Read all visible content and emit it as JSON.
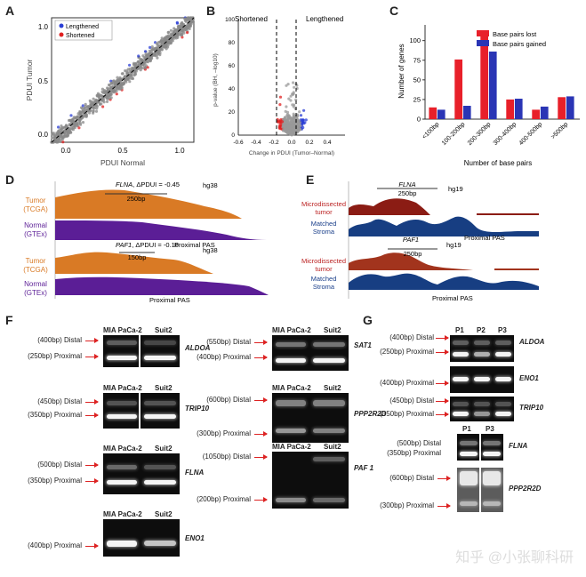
{
  "panels": {
    "a": "A",
    "b": "B",
    "c": "C",
    "d": "D",
    "e": "E",
    "f": "F",
    "g": "G"
  },
  "chart_data": [
    {
      "id": "A",
      "type": "scatter",
      "xlabel": "PDUI Normal",
      "ylabel": "PDUI Tumor",
      "xlim": [
        0,
        1
      ],
      "ylim": [
        0,
        1
      ],
      "xticks": [
        "0.0",
        "0.5",
        "1.0"
      ],
      "yticks": [
        "0.0",
        "0.5",
        "1.0"
      ],
      "legend": [
        "Lengthened",
        "Shortened"
      ],
      "colors": {
        "Lengthened": "#2b3fd6",
        "Shortened": "#e02020",
        "other": "#888888"
      }
    },
    {
      "id": "B",
      "type": "scatter",
      "title_left": "Shortened",
      "title_right": "Lengthened",
      "xlabel": "Change in PDUI (Tumor–Normal)",
      "ylabel": "p-value (BH, –log10)",
      "xlim": [
        -0.6,
        0.6
      ],
      "ylim": [
        0,
        100
      ],
      "xticks": [
        "-0.6",
        "-0.4",
        "-0.2",
        "0.0",
        "0.2",
        "0.4"
      ],
      "yticks": [
        "0",
        "20",
        "40",
        "60",
        "80",
        "100"
      ],
      "thresholds": [
        -0.1,
        0.1
      ]
    },
    {
      "id": "C",
      "type": "bar",
      "xlabel": "Number of base pairs",
      "ylabel": "Number of genes",
      "ylim": [
        0,
        120
      ],
      "yticks": [
        "0",
        "25",
        "50",
        "75",
        "100"
      ],
      "categories": [
        "<100bp",
        "100-200bp",
        "200-300bp",
        "300-400bp",
        "400-500bp",
        ">500bp"
      ],
      "series": [
        {
          "name": "Base pairs lost",
          "color": "#e8202a",
          "values": [
            15,
            76,
            112,
            25,
            12,
            28
          ]
        },
        {
          "name": "Base pairs gained",
          "color": "#2a35b5",
          "values": [
            12,
            17,
            86,
            26,
            16,
            29
          ]
        }
      ]
    }
  ],
  "d": {
    "track1": {
      "gene": "FLNA",
      "delta": ", ΔPDUI = -0.45",
      "scale": "250bp",
      "build": "hg38",
      "tumor": [
        "Tumor",
        "(TCGA)"
      ],
      "normal": [
        "Normal",
        "(GTEx)"
      ],
      "pas": "Proximal PAS"
    },
    "track2": {
      "gene": "PAF1",
      "delta": ", ΔPDUI = -0.16",
      "scale": "150bp",
      "build": "hg38",
      "tumor": [
        "Tumor",
        "(TCGA)"
      ],
      "normal": [
        "Normal",
        "(GTEx)"
      ],
      "pas": "Proximal PAS"
    }
  },
  "e": {
    "track1": {
      "gene": "FLNA",
      "scale": "250bp",
      "build": "hg19",
      "tumor": [
        "Microdissected",
        "tumor"
      ],
      "stroma": [
        "Matched",
        "Stroma"
      ],
      "pas": "Proximal PAS"
    },
    "track2": {
      "gene": "PAF1",
      "scale": "250bp",
      "build": "hg19",
      "tumor": [
        "Microdissected",
        "tumor"
      ],
      "stroma": [
        "Matched",
        "Stroma"
      ],
      "pas": "Proximal PAS"
    }
  },
  "f": {
    "lanes": {
      "mia": "MIA PaCa-2",
      "suit": "Suit2"
    },
    "gels": [
      {
        "gene": "ALDOA",
        "labels": [
          "(400bp) Distal",
          "(250bp) Proximal"
        ]
      },
      {
        "gene": "TRIP10",
        "labels": [
          "(450bp) Distal",
          "(350bp) Proximal"
        ]
      },
      {
        "gene": "FLNA",
        "labels": [
          "(500bp) Distal",
          "(350bp) Proximal"
        ]
      },
      {
        "gene": "ENO1",
        "labels": [
          "(400bp) Proximal"
        ]
      },
      {
        "gene": "SAT1",
        "labels": [
          "(550bp) Distal",
          "(400bp) Proximal"
        ]
      },
      {
        "gene": "PPP2R2D",
        "labels": [
          "(600bp) Distal",
          "(300bp) Proximal"
        ]
      },
      {
        "gene": "PAF 1",
        "labels": [
          "(1050bp) Distal",
          "(200bp) Proximal"
        ]
      }
    ]
  },
  "g": {
    "lanes": {
      "p1": "P1",
      "p2": "P2",
      "p3": "P3"
    },
    "gels": [
      {
        "gene": "ALDOA",
        "labels": [
          "(400bp) Distal",
          "(250bp) Proximal"
        ]
      },
      {
        "gene": "ENO1",
        "labels": [
          "(400bp) Proximal"
        ]
      },
      {
        "gene": "TRIP10",
        "labels": [
          "(450bp) Distal",
          "(350bp) Proximal"
        ]
      },
      {
        "gene": "FLNA",
        "labels": [
          "(500bp) Distal",
          "(350bp) Proximal"
        ]
      },
      {
        "gene": "PPP2R2D",
        "labels": [
          "(600bp) Distal",
          "(300bp) Proximal"
        ]
      }
    ]
  },
  "watermark": "知乎 @小张聊科研"
}
